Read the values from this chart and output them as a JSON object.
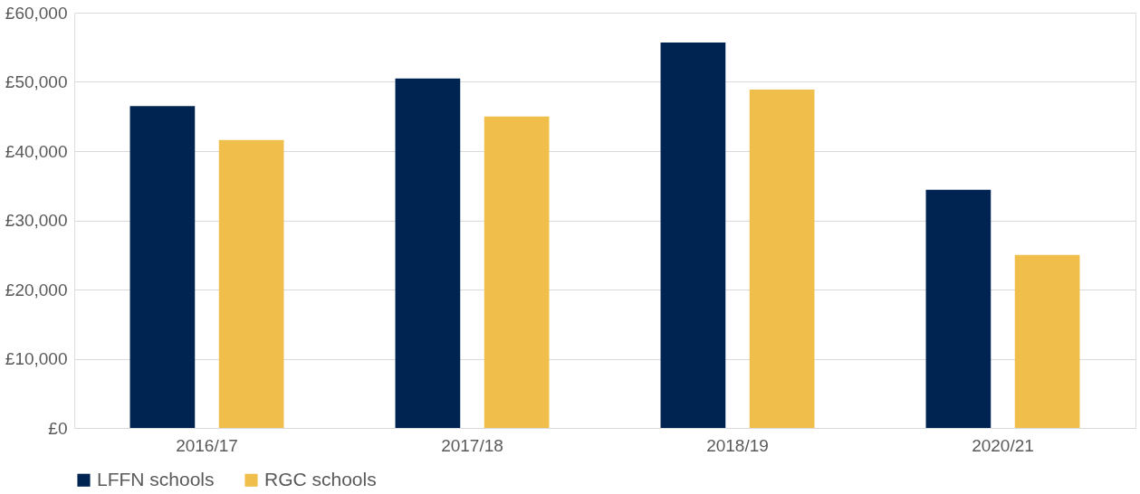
{
  "chart_data": {
    "type": "bar",
    "categories": [
      "2016/17",
      "2017/18",
      "2018/19",
      "2020/21"
    ],
    "series": [
      {
        "name": "LFFN schools",
        "color": "#002452",
        "values": [
          46500,
          50500,
          55700,
          34400
        ]
      },
      {
        "name": "RGC schools",
        "color": "#f0be4a",
        "values": [
          41600,
          45000,
          48900,
          25000
        ]
      }
    ],
    "ylim": [
      0,
      60000
    ],
    "yticks": [
      {
        "value": 0,
        "label": "£0"
      },
      {
        "value": 10000,
        "label": "£10,000"
      },
      {
        "value": 20000,
        "label": "£20,000"
      },
      {
        "value": 30000,
        "label": "£30,000"
      },
      {
        "value": 40000,
        "label": "£40,000"
      },
      {
        "value": 50000,
        "label": "£50,000"
      },
      {
        "value": 60000,
        "label": "£60,000"
      }
    ],
    "grid": "y",
    "legend": "bottom"
  }
}
